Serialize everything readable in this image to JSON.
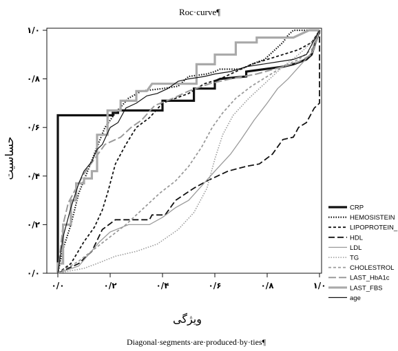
{
  "chart_data": {
    "type": "line",
    "title": "Roc·curve¶",
    "xlabel": "ویژگی",
    "ylabel": "حساسیت",
    "footnote": "Diagonal·segments·are·produced·by·ties¶",
    "xlim": [
      0,
      1
    ],
    "ylim": [
      0,
      1
    ],
    "x_tick_labels": [
      "۰/۰",
      "۰/۲",
      "۰/۴",
      "۰/۶",
      "۰/۸",
      "۱/۰"
    ],
    "y_tick_labels": [
      "۰/۰",
      "۰/۲",
      "۰/۴",
      "۰/۶",
      "۰/۸",
      "۱/۰"
    ],
    "tick_values": [
      0,
      0.2,
      0.4,
      0.6,
      0.8,
      1.0
    ],
    "grid": false,
    "legend_position": "bottom-right",
    "series": [
      {
        "name": "CRP",
        "color": "#111111",
        "width": 3.2,
        "dash": "",
        "points": [
          [
            0,
            0
          ],
          [
            0,
            0.65
          ],
          [
            0.21,
            0.65
          ],
          [
            0.21,
            0.66
          ],
          [
            0.23,
            0.66
          ],
          [
            0.23,
            0.67
          ],
          [
            0.4,
            0.67
          ],
          [
            0.4,
            0.71
          ],
          [
            0.52,
            0.71
          ],
          [
            0.52,
            0.76
          ],
          [
            0.6,
            0.76
          ],
          [
            0.6,
            0.79
          ],
          [
            0.62,
            0.8
          ],
          [
            0.72,
            0.81
          ],
          [
            0.72,
            0.83
          ],
          [
            0.86,
            0.85
          ],
          [
            0.9,
            0.86
          ],
          [
            0.95,
            0.88
          ],
          [
            0.97,
            0.9
          ],
          [
            1,
            1
          ]
        ]
      },
      {
        "name": "HEMOSISTEIN",
        "color": "#111111",
        "width": 2.2,
        "dash": "1.5,2",
        "points": [
          [
            0,
            0
          ],
          [
            0.02,
            0.1
          ],
          [
            0.05,
            0.2
          ],
          [
            0.08,
            0.33
          ],
          [
            0.11,
            0.41
          ],
          [
            0.15,
            0.52
          ],
          [
            0.18,
            0.6
          ],
          [
            0.22,
            0.66
          ],
          [
            0.27,
            0.72
          ],
          [
            0.32,
            0.75
          ],
          [
            0.4,
            0.76
          ],
          [
            0.46,
            0.77
          ],
          [
            0.5,
            0.81
          ],
          [
            0.57,
            0.82
          ],
          [
            0.6,
            0.83
          ],
          [
            0.62,
            0.84
          ],
          [
            0.7,
            0.84
          ],
          [
            0.74,
            0.86
          ],
          [
            0.79,
            0.88
          ],
          [
            0.86,
            0.95
          ],
          [
            0.88,
            0.98
          ],
          [
            0.9,
            1
          ],
          [
            1,
            1
          ]
        ]
      },
      {
        "name": "LIPOPROTEIN_",
        "color": "#111111",
        "width": 1.8,
        "dash": "4,3",
        "points": [
          [
            0,
            0
          ],
          [
            0.05,
            0.04
          ],
          [
            0.1,
            0.13
          ],
          [
            0.14,
            0.19
          ],
          [
            0.17,
            0.26
          ],
          [
            0.19,
            0.33
          ],
          [
            0.22,
            0.45
          ],
          [
            0.26,
            0.53
          ],
          [
            0.3,
            0.6
          ],
          [
            0.35,
            0.64
          ],
          [
            0.4,
            0.7
          ],
          [
            0.45,
            0.72
          ],
          [
            0.5,
            0.74
          ],
          [
            0.56,
            0.78
          ],
          [
            0.62,
            0.8
          ],
          [
            0.68,
            0.83
          ],
          [
            0.74,
            0.86
          ],
          [
            0.8,
            0.88
          ],
          [
            0.86,
            0.9
          ],
          [
            0.92,
            0.92
          ],
          [
            0.97,
            0.95
          ],
          [
            1,
            1
          ]
        ]
      },
      {
        "name": "HDL",
        "color": "#111111",
        "width": 1.8,
        "dash": "9,4",
        "points": [
          [
            0,
            0
          ],
          [
            0.08,
            0.04
          ],
          [
            0.13,
            0.09
          ],
          [
            0.17,
            0.18
          ],
          [
            0.22,
            0.22
          ],
          [
            0.35,
            0.22
          ],
          [
            0.36,
            0.24
          ],
          [
            0.41,
            0.24
          ],
          [
            0.45,
            0.3
          ],
          [
            0.52,
            0.35
          ],
          [
            0.57,
            0.38
          ],
          [
            0.65,
            0.42
          ],
          [
            0.72,
            0.44
          ],
          [
            0.77,
            0.45
          ],
          [
            0.82,
            0.49
          ],
          [
            0.86,
            0.55
          ],
          [
            0.9,
            0.56
          ],
          [
            0.92,
            0.6
          ],
          [
            0.95,
            0.62
          ],
          [
            0.98,
            0.68
          ],
          [
            1,
            0.7
          ],
          [
            1,
            1
          ]
        ]
      },
      {
        "name": "LDL",
        "color": "#9a9a9a",
        "width": 1.3,
        "dash": "",
        "points": [
          [
            0,
            0
          ],
          [
            0.08,
            0.03
          ],
          [
            0.12,
            0.08
          ],
          [
            0.16,
            0.13
          ],
          [
            0.2,
            0.17
          ],
          [
            0.27,
            0.2
          ],
          [
            0.35,
            0.2
          ],
          [
            0.4,
            0.23
          ],
          [
            0.45,
            0.27
          ],
          [
            0.5,
            0.3
          ],
          [
            0.55,
            0.36
          ],
          [
            0.6,
            0.42
          ],
          [
            0.66,
            0.49
          ],
          [
            0.7,
            0.55
          ],
          [
            0.75,
            0.63
          ],
          [
            0.8,
            0.7
          ],
          [
            0.84,
            0.76
          ],
          [
            0.88,
            0.8
          ],
          [
            0.93,
            0.86
          ],
          [
            0.98,
            0.92
          ],
          [
            1,
            1
          ]
        ]
      },
      {
        "name": "TG",
        "color": "#9a9a9a",
        "width": 1.6,
        "dash": "1.5,2",
        "points": [
          [
            0,
            0
          ],
          [
            0.1,
            0.02
          ],
          [
            0.15,
            0.04
          ],
          [
            0.22,
            0.07
          ],
          [
            0.3,
            0.09
          ],
          [
            0.38,
            0.12
          ],
          [
            0.46,
            0.18
          ],
          [
            0.52,
            0.25
          ],
          [
            0.57,
            0.35
          ],
          [
            0.6,
            0.47
          ],
          [
            0.63,
            0.57
          ],
          [
            0.67,
            0.65
          ],
          [
            0.73,
            0.72
          ],
          [
            0.8,
            0.79
          ],
          [
            0.86,
            0.85
          ],
          [
            0.92,
            0.9
          ],
          [
            0.97,
            0.95
          ],
          [
            1,
            1
          ]
        ]
      },
      {
        "name": "CHOLESTROL",
        "color": "#9a9a9a",
        "width": 1.8,
        "dash": "4,3",
        "points": [
          [
            0,
            0
          ],
          [
            0.08,
            0.05
          ],
          [
            0.14,
            0.1
          ],
          [
            0.2,
            0.15
          ],
          [
            0.26,
            0.2
          ],
          [
            0.33,
            0.27
          ],
          [
            0.39,
            0.33
          ],
          [
            0.45,
            0.38
          ],
          [
            0.5,
            0.44
          ],
          [
            0.55,
            0.52
          ],
          [
            0.59,
            0.6
          ],
          [
            0.63,
            0.66
          ],
          [
            0.68,
            0.72
          ],
          [
            0.74,
            0.77
          ],
          [
            0.8,
            0.81
          ],
          [
            0.86,
            0.85
          ],
          [
            0.92,
            0.88
          ],
          [
            0.97,
            0.92
          ],
          [
            1,
            1
          ]
        ]
      },
      {
        "name": "LAST_HbA1c",
        "color": "#9a9a9a",
        "width": 2.0,
        "dash": "11,4",
        "points": [
          [
            0,
            0
          ],
          [
            0.02,
            0.2
          ],
          [
            0.04,
            0.29
          ],
          [
            0.07,
            0.35
          ],
          [
            0.1,
            0.41
          ],
          [
            0.14,
            0.47
          ],
          [
            0.18,
            0.53
          ],
          [
            0.24,
            0.56
          ],
          [
            0.28,
            0.6
          ],
          [
            0.32,
            0.63
          ],
          [
            0.37,
            0.69
          ],
          [
            0.44,
            0.72
          ],
          [
            0.5,
            0.75
          ],
          [
            0.58,
            0.78
          ],
          [
            0.66,
            0.8
          ],
          [
            0.76,
            0.82
          ],
          [
            0.86,
            0.85
          ],
          [
            0.92,
            0.87
          ],
          [
            0.97,
            0.9
          ],
          [
            1,
            1
          ]
        ]
      },
      {
        "name": "LAST_FBS",
        "color": "#a9a9a9",
        "width": 3.2,
        "dash": "",
        "points": [
          [
            0,
            0
          ],
          [
            0,
            0.04
          ],
          [
            0.02,
            0.04
          ],
          [
            0.02,
            0.2
          ],
          [
            0.05,
            0.2
          ],
          [
            0.05,
            0.3
          ],
          [
            0.07,
            0.3
          ],
          [
            0.07,
            0.37
          ],
          [
            0.1,
            0.37
          ],
          [
            0.1,
            0.39
          ],
          [
            0.13,
            0.39
          ],
          [
            0.13,
            0.42
          ],
          [
            0.15,
            0.42
          ],
          [
            0.15,
            0.57
          ],
          [
            0.19,
            0.57
          ],
          [
            0.19,
            0.67
          ],
          [
            0.24,
            0.67
          ],
          [
            0.24,
            0.71
          ],
          [
            0.3,
            0.71
          ],
          [
            0.3,
            0.75
          ],
          [
            0.34,
            0.75
          ],
          [
            0.36,
            0.78
          ],
          [
            0.53,
            0.78
          ],
          [
            0.53,
            0.86
          ],
          [
            0.6,
            0.86
          ],
          [
            0.6,
            0.9
          ],
          [
            0.68,
            0.9
          ],
          [
            0.68,
            0.95
          ],
          [
            0.76,
            0.95
          ],
          [
            0.76,
            0.97
          ],
          [
            0.9,
            0.97
          ],
          [
            0.96,
            1
          ],
          [
            1,
            1
          ]
        ]
      },
      {
        "name": "age",
        "color": "#111111",
        "width": 1.2,
        "dash": "",
        "points": [
          [
            0,
            0
          ],
          [
            0.02,
            0.15
          ],
          [
            0.05,
            0.27
          ],
          [
            0.08,
            0.37
          ],
          [
            0.1,
            0.42
          ],
          [
            0.13,
            0.46
          ],
          [
            0.15,
            0.51
          ],
          [
            0.17,
            0.53
          ],
          [
            0.2,
            0.6
          ],
          [
            0.23,
            0.62
          ],
          [
            0.26,
            0.68
          ],
          [
            0.3,
            0.7
          ],
          [
            0.34,
            0.73
          ],
          [
            0.38,
            0.74
          ],
          [
            0.42,
            0.76
          ],
          [
            0.46,
            0.79
          ],
          [
            0.5,
            0.8
          ],
          [
            0.56,
            0.81
          ],
          [
            0.6,
            0.82
          ],
          [
            0.66,
            0.83
          ],
          [
            0.72,
            0.85
          ],
          [
            0.78,
            0.86
          ],
          [
            0.84,
            0.87
          ],
          [
            0.9,
            0.88
          ],
          [
            0.95,
            0.9
          ],
          [
            1,
            1
          ]
        ]
      }
    ]
  }
}
